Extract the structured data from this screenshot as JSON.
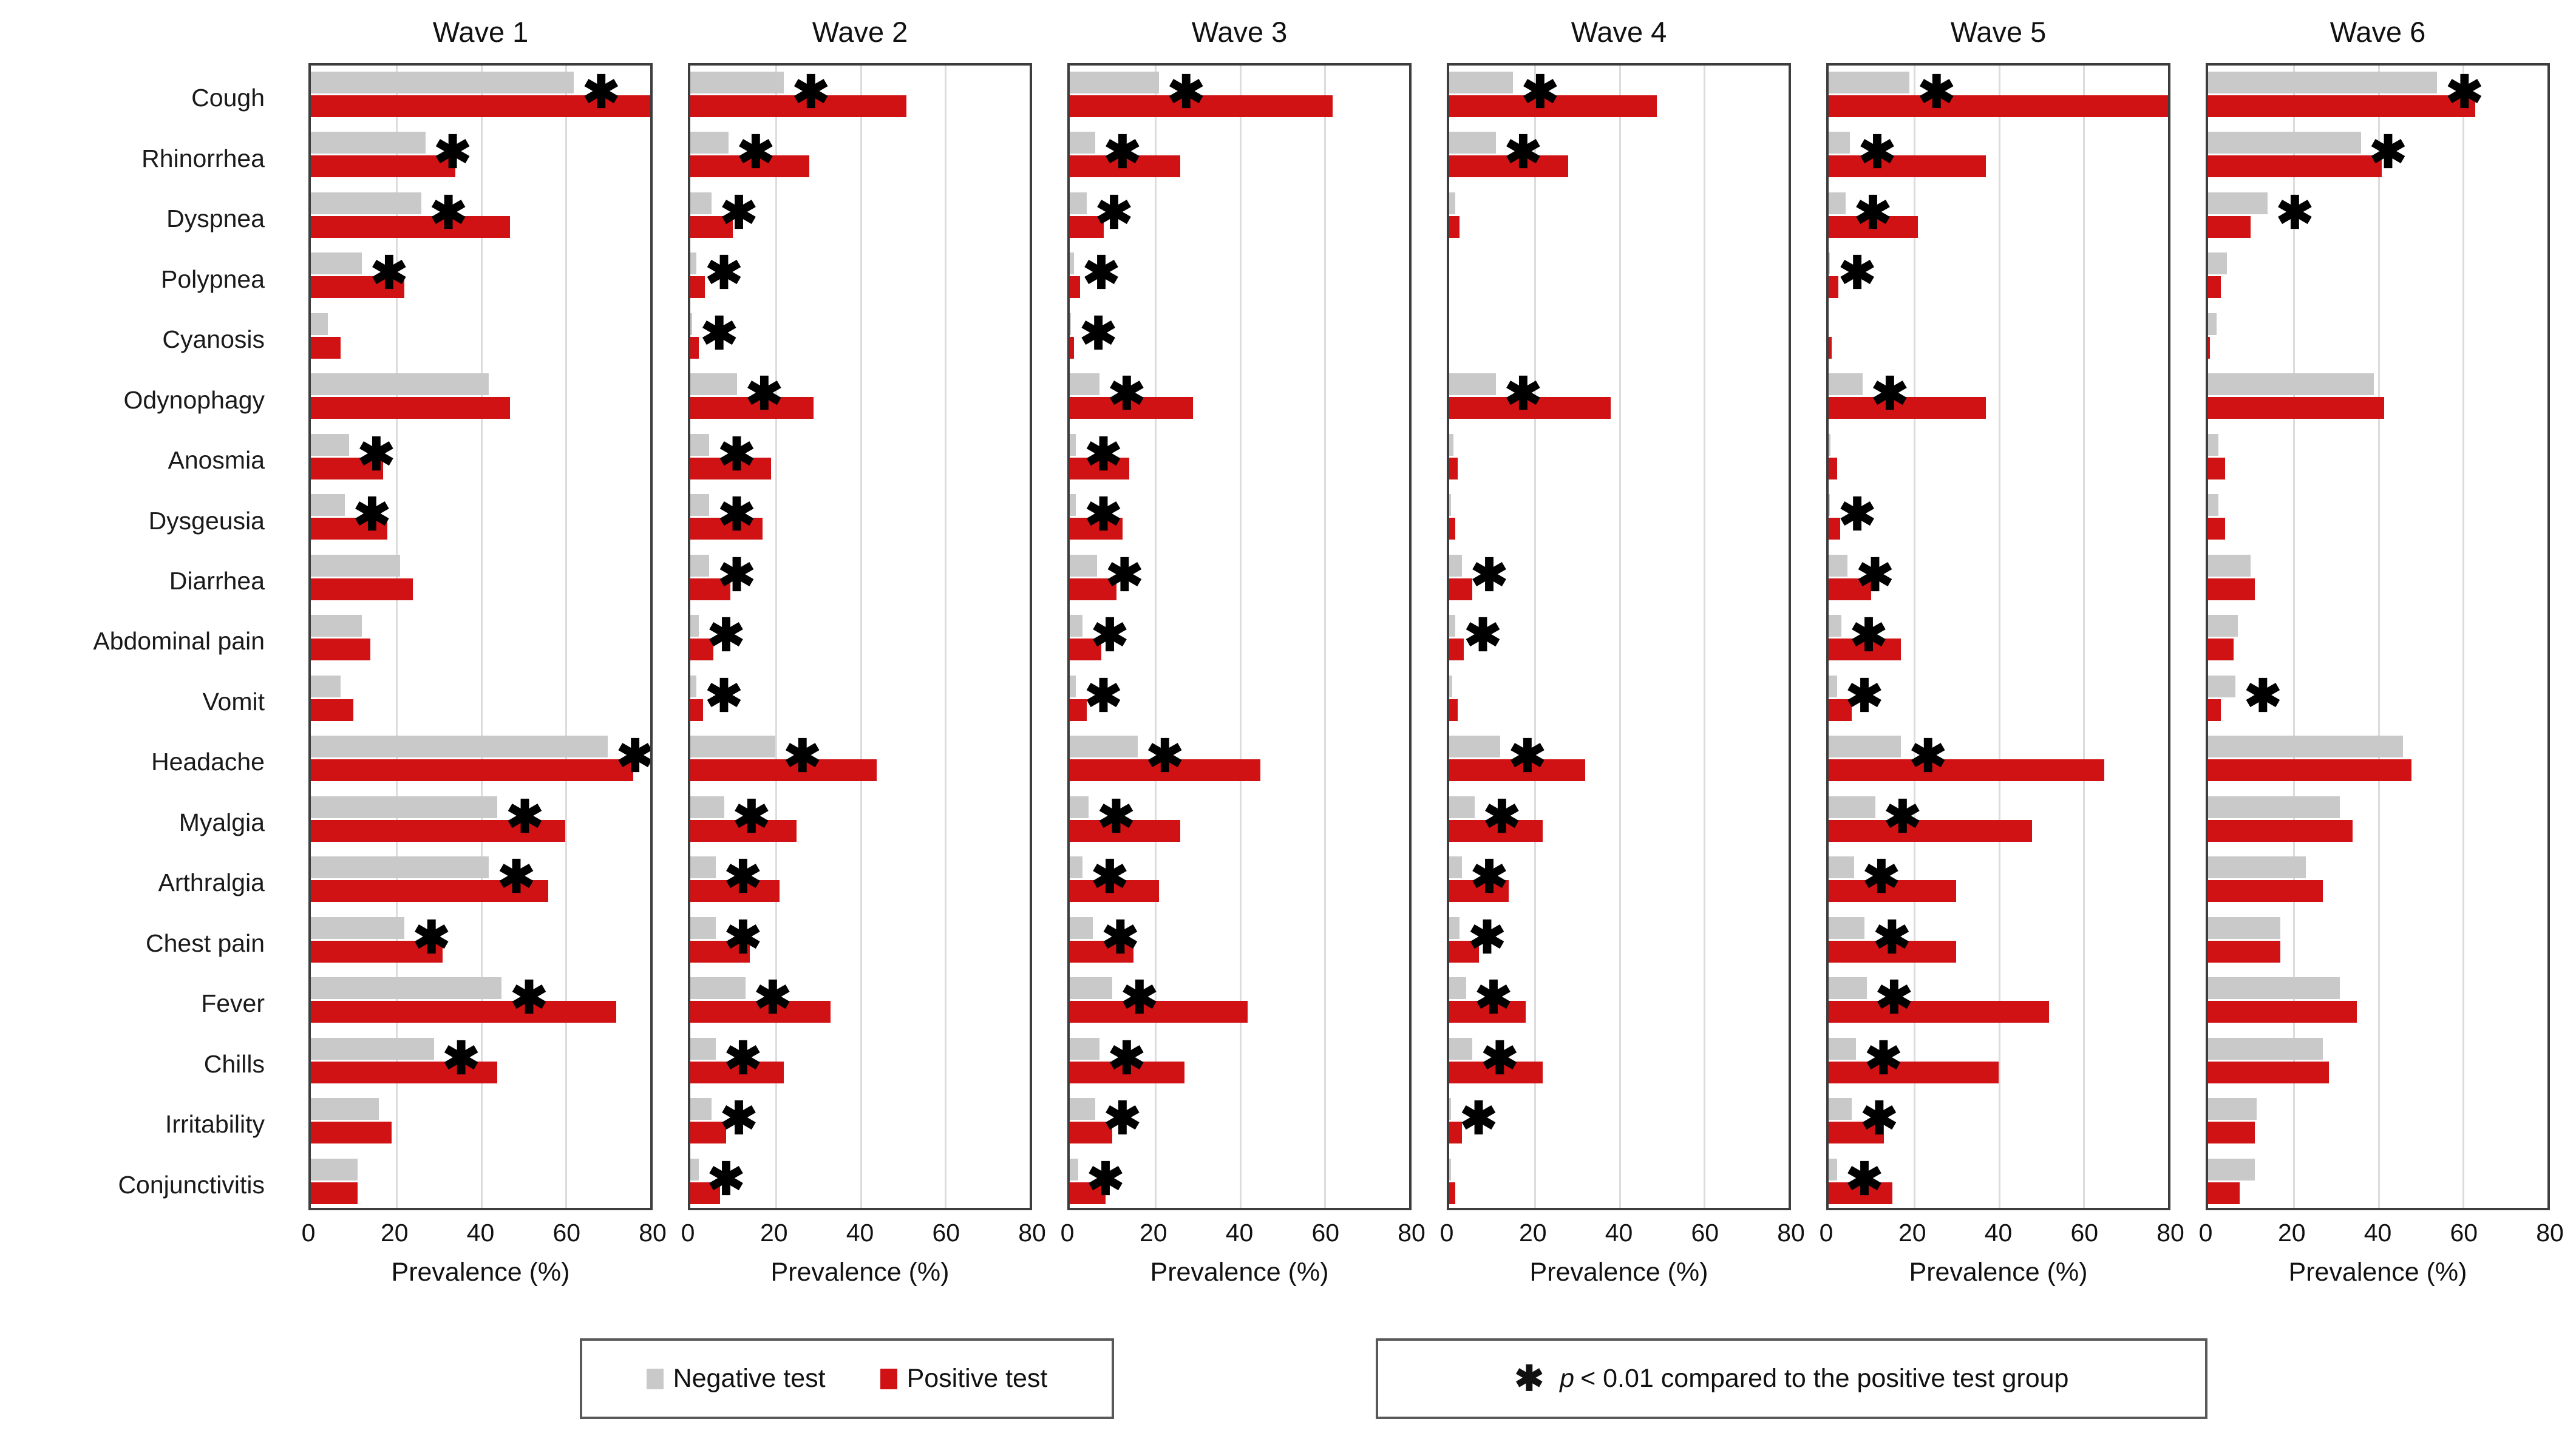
{
  "chart_data": {
    "type": "bar",
    "orientation": "horizontal",
    "title": "",
    "xlabel": "Prevalence (%)",
    "xlim": [
      0,
      80
    ],
    "x_ticks": [
      0,
      20,
      40,
      60,
      80
    ],
    "grid": "vertical gridlines every 20",
    "categories": [
      "Cough",
      "Rhinorrhea",
      "Dyspnea",
      "Polypnea",
      "Cyanosis",
      "Odynophagy",
      "Anosmia",
      "Dysgeusia",
      "Diarrhea",
      "Abdominal pain",
      "Vomit",
      "Headache",
      "Myalgia",
      "Arthralgia",
      "Chest pain",
      "Fever",
      "Chills",
      "Irritability",
      "Conjunctivitis"
    ],
    "series_names": [
      "Negative test",
      "Positive test"
    ],
    "waves": [
      {
        "title": "Wave 1",
        "negative": [
          62,
          27,
          26,
          12,
          4,
          42,
          9,
          8,
          21,
          12,
          7,
          70,
          44,
          42,
          22,
          45,
          29,
          16,
          11
        ],
        "positive": [
          81,
          34,
          47,
          22,
          7,
          47,
          17,
          18,
          24,
          14,
          10,
          76,
          60,
          56,
          31,
          72,
          44,
          19,
          11
        ],
        "significant": [
          true,
          true,
          true,
          true,
          false,
          false,
          true,
          true,
          false,
          false,
          false,
          true,
          true,
          true,
          true,
          true,
          true,
          false,
          false
        ]
      },
      {
        "title": "Wave 2",
        "negative": [
          22,
          9,
          5,
          1.5,
          0.4,
          11,
          4.5,
          4.5,
          4.5,
          2,
          1.5,
          20,
          8,
          6,
          6,
          13,
          6,
          5,
          2
        ],
        "positive": [
          51,
          28,
          10,
          3.5,
          2,
          29,
          19,
          17,
          9.5,
          5.5,
          3,
          44,
          25,
          21,
          14,
          33,
          22,
          8.5,
          7
        ],
        "significant": [
          true,
          true,
          true,
          true,
          true,
          true,
          true,
          true,
          true,
          true,
          true,
          true,
          true,
          true,
          true,
          true,
          true,
          true,
          true
        ]
      },
      {
        "title": "Wave 3",
        "negative": [
          21,
          6,
          4,
          1,
          0.3,
          7,
          1.5,
          1.5,
          6.5,
          3,
          1.5,
          16,
          4.5,
          3,
          5.5,
          10,
          7,
          6,
          2
        ],
        "positive": [
          62,
          26,
          8,
          2.5,
          1,
          29,
          14,
          12.5,
          11,
          7.5,
          4,
          45,
          26,
          21,
          15,
          42,
          27,
          10,
          8.5
        ],
        "significant": [
          true,
          true,
          true,
          true,
          true,
          true,
          true,
          true,
          true,
          true,
          true,
          true,
          true,
          true,
          true,
          true,
          true,
          true,
          true
        ]
      },
      {
        "title": "Wave 4",
        "negative": [
          15,
          11,
          1.5,
          0,
          0,
          11,
          1,
          0.5,
          3,
          1.5,
          0.7,
          12,
          6,
          3,
          2.5,
          4,
          5.5,
          0.5,
          0.5
        ],
        "positive": [
          49,
          28,
          2.5,
          0,
          0,
          38,
          2,
          1.5,
          5.5,
          3.5,
          2,
          32,
          22,
          14,
          7,
          18,
          22,
          3,
          1.5
        ],
        "significant": [
          true,
          true,
          false,
          false,
          false,
          true,
          false,
          false,
          true,
          true,
          false,
          true,
          true,
          true,
          true,
          true,
          true,
          true,
          false
        ]
      },
      {
        "title": "Wave 5",
        "negative": [
          19,
          5,
          4,
          0.3,
          0,
          8,
          0.5,
          0.3,
          4.5,
          3,
          2,
          17,
          11,
          6,
          8.5,
          9,
          6.5,
          5.5,
          2
        ],
        "positive": [
          80,
          37,
          21,
          2.3,
          0.7,
          37,
          2,
          2.7,
          10,
          17,
          5.5,
          65,
          48,
          30,
          30,
          52,
          40,
          13,
          15
        ],
        "significant": [
          true,
          true,
          true,
          true,
          false,
          true,
          false,
          true,
          true,
          true,
          true,
          true,
          true,
          true,
          true,
          true,
          true,
          true,
          true
        ]
      },
      {
        "title": "Wave 6",
        "negative": [
          54,
          36,
          14,
          4.5,
          2,
          39,
          2.5,
          2.5,
          10,
          7,
          6.5,
          46,
          31,
          23,
          17,
          31,
          27,
          11.5,
          11
        ],
        "positive": [
          63,
          41,
          10,
          3,
          0.5,
          41.5,
          4,
          4,
          11,
          6,
          3,
          48,
          34,
          27,
          17,
          35,
          28.5,
          11,
          7.5
        ],
        "significant": [
          true,
          true,
          true,
          false,
          false,
          false,
          false,
          false,
          false,
          false,
          true,
          false,
          false,
          false,
          false,
          false,
          false,
          false,
          false
        ]
      }
    ],
    "legend": {
      "negative_label": "Negative test",
      "positive_label": "Positive test"
    },
    "sig_note": {
      "symbol": "✱",
      "p_var": "p",
      "text": "< 0.01 compared to the positive test group"
    },
    "colors": {
      "negative": "#c9c9c9",
      "positive": "#d01215",
      "gridline": "#dcdcdc",
      "panel_border": "#3d3d3d"
    }
  }
}
